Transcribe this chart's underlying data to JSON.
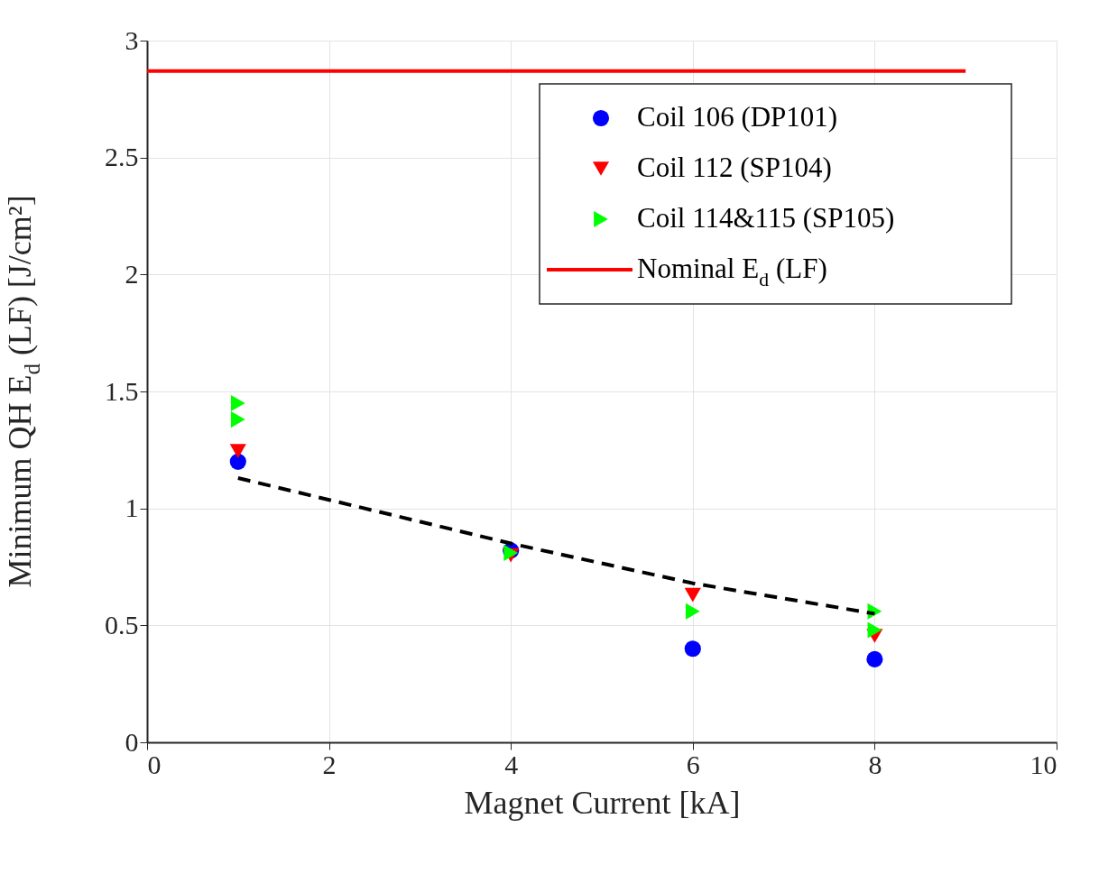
{
  "chart_data": {
    "type": "scatter",
    "xlabel": "Magnet Current [kA]",
    "ylabel": "Minimum QH E$_{d}$ (LF) [J/cm²]",
    "xlim": [
      0,
      10
    ],
    "xticks": [
      0,
      2,
      4,
      6,
      8,
      10
    ],
    "ylim": [
      0,
      3
    ],
    "yticks": [
      0,
      0.5,
      1,
      1.5,
      2,
      2.5,
      3
    ],
    "grid": true,
    "legend": "top right",
    "series": [
      {
        "name": "Coil 106 (DP101)",
        "marker": "circle",
        "color": "#0000ff",
        "x": [
          1,
          4,
          6,
          8
        ],
        "values": [
          1.2,
          0.82,
          0.4,
          0.355
        ]
      },
      {
        "name": "Coil 112 (SP104)",
        "marker": "triangle-down",
        "color": "#ff0000",
        "x": [
          1,
          4,
          6,
          8
        ],
        "values": [
          1.245,
          0.8,
          0.63,
          0.455
        ]
      },
      {
        "name": "Coil 114&115 (SP105)",
        "marker": "triangle-right",
        "color": "#00ff00",
        "x": [
          1,
          1,
          4,
          6,
          8,
          8
        ],
        "values": [
          1.45,
          1.38,
          0.81,
          0.56,
          0.56,
          0.48
        ]
      },
      {
        "type": "line",
        "line_style": "dashed",
        "color": "#000000",
        "x": [
          1,
          4,
          6,
          8
        ],
        "values": [
          1.13,
          0.85,
          0.68,
          0.55
        ]
      },
      {
        "name": "Nominal E$_{d}$ (LF)",
        "type": "line",
        "line_style": "solid",
        "color": "#ff0000",
        "x": [
          0,
          9
        ],
        "values": [
          2.87,
          2.87
        ]
      }
    ]
  }
}
